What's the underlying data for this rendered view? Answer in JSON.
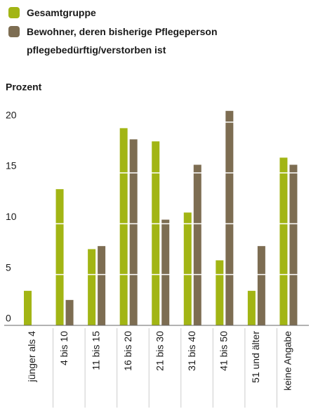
{
  "chart_data": {
    "type": "bar",
    "y_label": "Prozent",
    "categories": [
      "jünger als 4",
      "4 bis 10",
      "11 bis 15",
      "16 bis 20",
      "21 bis 30",
      "31 bis 40",
      "41 bis 50",
      "51 und älter",
      "keine Angabe"
    ],
    "series": [
      {
        "name": "Gesamtgruppe",
        "color": "#a2b514",
        "values": [
          3.4,
          13.4,
          7.5,
          19.4,
          18.1,
          11.1,
          6.4,
          3.4,
          16.5
        ]
      },
      {
        "name": "Bewohner, deren bisherige Pflegeperson pflegebedürftig/verstorben ist",
        "color": "#7d6d52",
        "values": [
          0,
          2.5,
          7.8,
          18.3,
          10.4,
          15.8,
          21.1,
          7.8,
          15.8
        ]
      }
    ],
    "ylim": [
      0,
      21.5
    ],
    "yticks": [
      0,
      5,
      10,
      15,
      20
    ],
    "grid": true
  }
}
